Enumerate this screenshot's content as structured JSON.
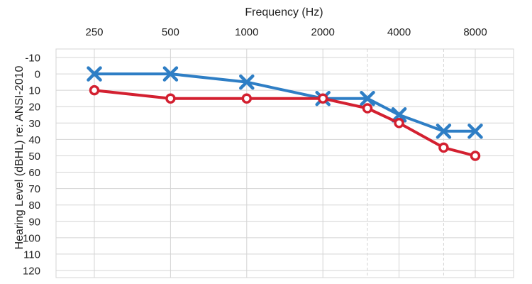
{
  "chart_data": {
    "type": "line",
    "title": "",
    "xlabel": "Frequency (Hz)",
    "ylabel": "Hearing Level (dBHL) re: ANSI-2010",
    "x_axis_position": "top",
    "y_axis_inverted": true,
    "x_scale": "log2",
    "xlim": [
      250,
      8000
    ],
    "ylim": [
      -10,
      120
    ],
    "x_ticks": [
      250,
      500,
      1000,
      2000,
      4000,
      8000
    ],
    "x_minor_gridlines": [
      3000,
      6000
    ],
    "y_ticks": [
      -10,
      0,
      10,
      20,
      30,
      40,
      50,
      60,
      70,
      80,
      90,
      100,
      110,
      120
    ],
    "grid": true,
    "legend": "none",
    "series": [
      {
        "marker": "x",
        "color": "#2e7ec5",
        "points": [
          {
            "x": 250,
            "y": 0
          },
          {
            "x": 500,
            "y": 0
          },
          {
            "x": 1000,
            "y": 5
          },
          {
            "x": 2000,
            "y": 15
          },
          {
            "x": 3000,
            "y": 15
          },
          {
            "x": 4000,
            "y": 25
          },
          {
            "x": 6000,
            "y": 35
          },
          {
            "x": 8000,
            "y": 35
          }
        ]
      },
      {
        "marker": "o",
        "color": "#d32030",
        "points": [
          {
            "x": 250,
            "y": 10
          },
          {
            "x": 500,
            "y": 15
          },
          {
            "x": 1000,
            "y": 15
          },
          {
            "x": 2000,
            "y": 15
          },
          {
            "x": 3000,
            "y": 21
          },
          {
            "x": 4000,
            "y": 30
          },
          {
            "x": 6000,
            "y": 45
          },
          {
            "x": 8000,
            "y": 50
          }
        ]
      }
    ]
  }
}
